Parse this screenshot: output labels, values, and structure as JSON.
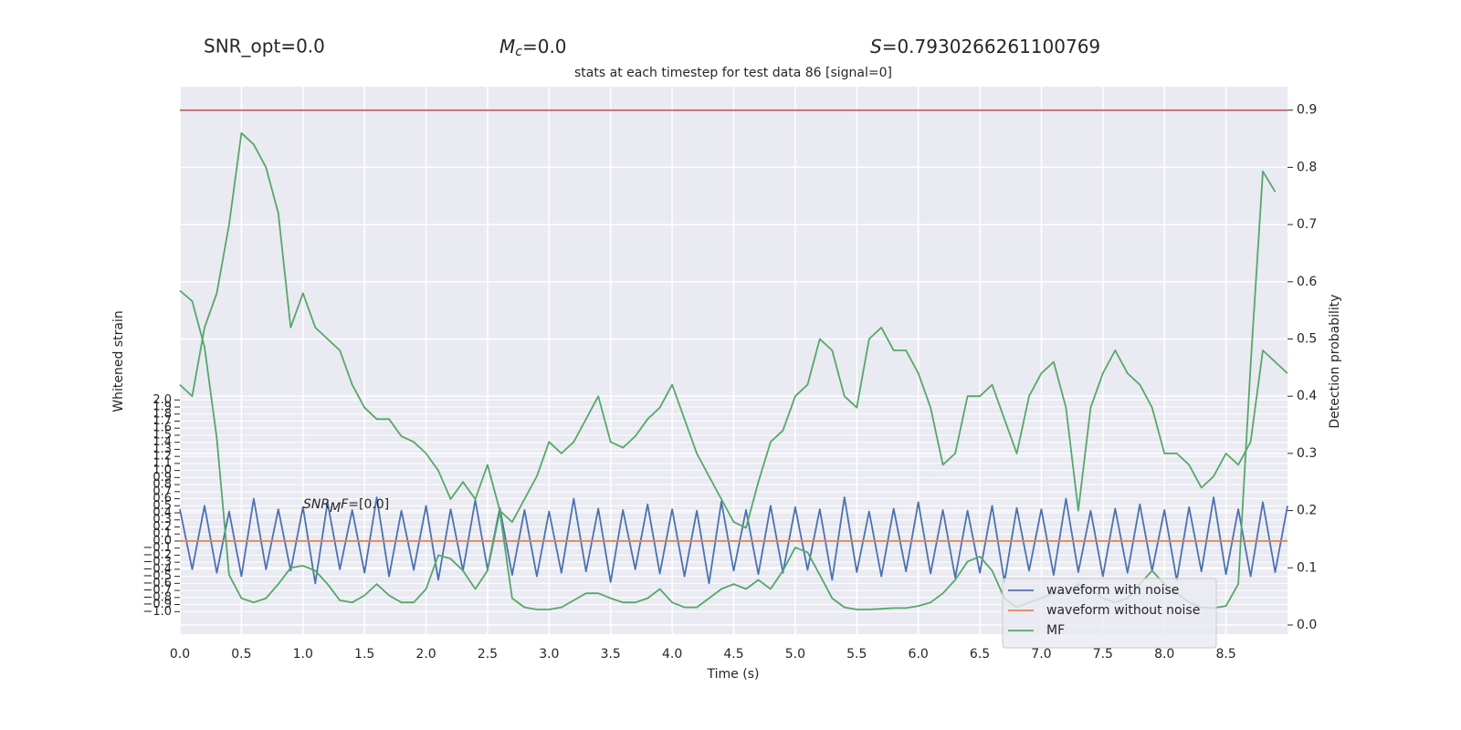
{
  "chart_data": {
    "type": "line",
    "title": "stats at each timestep for test data 86 [signal=0]",
    "snr_opt": "SNR_opt=0.0",
    "mc": {
      "symbol": "M",
      "sub": "c",
      "rest": "=0.0"
    },
    "s": {
      "symbol": "S",
      "rest": "=0.7930266261100769"
    },
    "snr_mf": {
      "symbol": "SNR",
      "sub": "M",
      "tail": "F",
      "rest": "=[0.0]"
    },
    "xlabel": "Time (s)",
    "ylabel": "Whitened strain",
    "y2label": "Detection probability",
    "xlim": [
      0,
      9
    ],
    "ylim": [
      -1.32,
      6.44
    ],
    "y2lim": [
      -0.016,
      0.941
    ],
    "grid": true,
    "legend": "lower right",
    "xticks": [
      {
        "value": 0,
        "label": "0.0"
      },
      0.5,
      {
        "value": 1,
        "label": "1.0"
      },
      1.5,
      {
        "value": 2,
        "label": "2.0"
      },
      2.5,
      {
        "value": 3,
        "label": "3.0"
      },
      3.5,
      {
        "value": 4,
        "label": "4.0"
      },
      4.5,
      {
        "value": 5,
        "label": "5.0"
      },
      5.5,
      {
        "value": 6,
        "label": "6.0"
      },
      6.5,
      {
        "value": 7,
        "label": "7.0"
      },
      7.5,
      {
        "value": 8,
        "label": "8.0"
      },
      8.5
    ],
    "yticks": [
      {
        "value": -1,
        "label": "−1.0"
      },
      {
        "value": -0.9,
        "label": "−0.9"
      },
      {
        "value": -0.8,
        "label": "−0.8"
      },
      {
        "value": -0.7,
        "label": "−0.7"
      },
      {
        "value": -0.6,
        "label": "−0.6"
      },
      {
        "value": -0.5,
        "label": "−0.5"
      },
      {
        "value": -0.4,
        "label": "−0.4"
      },
      {
        "value": -0.3,
        "label": "−0.3"
      },
      {
        "value": -0.2,
        "label": "−0.2"
      },
      {
        "value": -0.1,
        "label": "−0.1"
      },
      {
        "value": 0,
        "label": "0.0"
      },
      0.1,
      0.2,
      0.3,
      0.4,
      0.5,
      0.6,
      0.7,
      0.8,
      0.9,
      {
        "value": 1,
        "label": "1.0"
      },
      1.1,
      1.2,
      1.3,
      1.4,
      1.5,
      1.6,
      1.7,
      1.8,
      1.9,
      {
        "value": 2,
        "label": "2.0"
      }
    ],
    "y2ticks": [
      {
        "value": 0,
        "label": "0.0"
      },
      0.1,
      0.2,
      0.3,
      0.4,
      0.5,
      0.6,
      0.7,
      0.8,
      0.9
    ],
    "hlines": [
      {
        "value": 0.9,
        "color": "#c44e52",
        "axis": "y2"
      }
    ],
    "x": [
      0,
      0.1,
      0.2,
      0.3,
      0.4,
      0.5,
      0.6,
      0.7,
      0.8,
      0.9,
      1,
      1.1,
      1.2,
      1.3,
      1.4,
      1.5,
      1.6,
      1.7,
      1.8,
      1.9,
      2,
      2.1,
      2.2,
      2.3,
      2.4,
      2.5,
      2.6,
      2.7,
      2.8,
      2.9,
      3,
      3.1,
      3.2,
      3.3,
      3.4,
      3.5,
      3.6,
      3.7,
      3.8,
      3.9,
      4,
      4.1,
      4.2,
      4.3,
      4.4,
      4.5,
      4.6,
      4.7,
      4.8,
      4.9,
      5,
      5.1,
      5.2,
      5.3,
      5.4,
      5.5,
      5.6,
      5.7,
      5.8,
      5.9,
      6,
      6.1,
      6.2,
      6.3,
      6.4,
      6.5,
      6.6,
      6.7,
      6.8,
      6.9,
      7,
      7.1,
      7.2,
      7.3,
      7.4,
      7.5,
      7.6,
      7.7,
      7.8,
      7.9,
      8,
      8.1,
      8.2,
      8.3,
      8.4,
      8.5,
      8.6,
      8.7,
      8.8,
      8.9,
      9
    ],
    "series": [
      {
        "name": "waveform with noise",
        "color": "#4c72b0",
        "values": [
          0.45,
          -0.4,
          0.5,
          -0.45,
          0.42,
          -0.5,
          0.6,
          -0.4,
          0.45,
          -0.42,
          0.48,
          -0.6,
          0.55,
          -0.4,
          0.44,
          -0.45,
          0.62,
          -0.5,
          0.43,
          -0.41,
          0.5,
          -0.55,
          0.45,
          -0.42,
          0.58,
          -0.4,
          0.47,
          -0.48,
          0.44,
          -0.5,
          0.42,
          -0.45,
          0.6,
          -0.43,
          0.46,
          -0.58,
          0.44,
          -0.4,
          0.52,
          -0.46,
          0.45,
          -0.5,
          0.43,
          -0.6,
          0.56,
          -0.42,
          0.44,
          -0.47,
          0.5,
          -0.45,
          0.48,
          -0.41,
          0.45,
          -0.55,
          0.62,
          -0.44,
          0.42,
          -0.5,
          0.46,
          -0.43,
          0.55,
          -0.46,
          0.44,
          -0.52,
          0.43,
          -0.45,
          0.5,
          -0.58,
          0.47,
          -0.42,
          0.45,
          -0.48,
          0.6,
          -0.44,
          0.43,
          -0.5,
          0.46,
          -0.45,
          0.52,
          -0.42,
          0.44,
          -0.56,
          0.48,
          -0.43,
          0.62,
          -0.47,
          0.45,
          -0.5,
          0.55,
          -0.44,
          0.5
        ]
      },
      {
        "name": "waveform without noise",
        "color": "#dd8452",
        "values": [
          0,
          0,
          0,
          0,
          0,
          0,
          0,
          0,
          0,
          0,
          0,
          0,
          0,
          0,
          0,
          0,
          0,
          0,
          0,
          0,
          0,
          0,
          0,
          0,
          0,
          0,
          0,
          0,
          0,
          0,
          0,
          0,
          0,
          0,
          0,
          0,
          0,
          0,
          0,
          0,
          0,
          0,
          0,
          0,
          0,
          0,
          0,
          0,
          0,
          0,
          0,
          0,
          0,
          0,
          0,
          0,
          0,
          0,
          0,
          0,
          0,
          0,
          0,
          0,
          0,
          0,
          0,
          0,
          0,
          0,
          0,
          0,
          0,
          0,
          0,
          0,
          0,
          0,
          0,
          0,
          0,
          0,
          0,
          0,
          0,
          0,
          0,
          0,
          0,
          0,
          0
        ]
      },
      {
        "name": "MF",
        "color": "#55a868",
        "values": [
          3.55,
          3.4,
          2.75,
          1.46,
          -0.48,
          -0.81,
          -0.87,
          -0.81,
          -0.61,
          -0.38,
          -0.35,
          -0.42,
          -0.61,
          -0.84,
          -0.87,
          -0.77,
          -0.61,
          -0.77,
          -0.87,
          -0.87,
          -0.68,
          -0.2,
          -0.25,
          -0.42,
          -0.68,
          -0.42,
          0.42,
          -0.81,
          -0.94,
          -0.97,
          -0.97,
          -0.94,
          -0.84,
          -0.74,
          -0.74,
          -0.81,
          -0.87,
          -0.87,
          -0.81,
          -0.68,
          -0.87,
          -0.94,
          -0.94,
          -0.81,
          -0.68,
          -0.61,
          -0.68,
          -0.55,
          -0.68,
          -0.42,
          -0.09,
          -0.16,
          -0.48,
          -0.81,
          -0.94,
          -0.97,
          -0.97,
          -0.96,
          -0.95,
          -0.95,
          -0.92,
          -0.87,
          -0.74,
          -0.55,
          -0.29,
          -0.22,
          -0.42,
          -0.81,
          -0.94,
          -0.87,
          -0.81,
          -0.74,
          -0.74,
          -0.61,
          -0.68,
          -0.81,
          -0.87,
          -0.81,
          -0.61,
          -0.42,
          -0.61,
          -0.74,
          -0.87,
          -0.94,
          -0.95,
          -0.92,
          -0.61,
          2.49,
          5.24,
          4.95,
          null
        ]
      },
      {
        "color": "#55a868",
        "axis": "y2",
        "values": [
          0.42,
          0.4,
          0.52,
          0.58,
          0.7,
          0.86,
          0.84,
          0.8,
          0.72,
          0.52,
          0.58,
          0.52,
          0.5,
          0.48,
          0.42,
          0.38,
          0.36,
          0.36,
          0.33,
          0.32,
          0.3,
          0.27,
          0.22,
          0.25,
          0.22,
          0.28,
          0.2,
          0.18,
          0.22,
          0.26,
          0.32,
          0.3,
          0.32,
          0.36,
          0.4,
          0.32,
          0.31,
          0.33,
          0.36,
          0.38,
          0.42,
          0.36,
          0.3,
          0.26,
          0.22,
          0.18,
          0.17,
          0.25,
          0.32,
          0.34,
          0.4,
          0.42,
          0.5,
          0.48,
          0.4,
          0.38,
          0.5,
          0.52,
          0.48,
          0.48,
          0.44,
          0.38,
          0.28,
          0.3,
          0.4,
          0.4,
          0.42,
          0.36,
          0.3,
          0.4,
          0.44,
          0.46,
          0.38,
          0.2,
          0.38,
          0.44,
          0.48,
          0.44,
          0.42,
          0.38,
          0.3,
          0.3,
          0.28,
          0.24,
          0.26,
          0.3,
          0.28,
          0.32,
          0.48,
          0.46,
          0.44
        ]
      }
    ]
  }
}
